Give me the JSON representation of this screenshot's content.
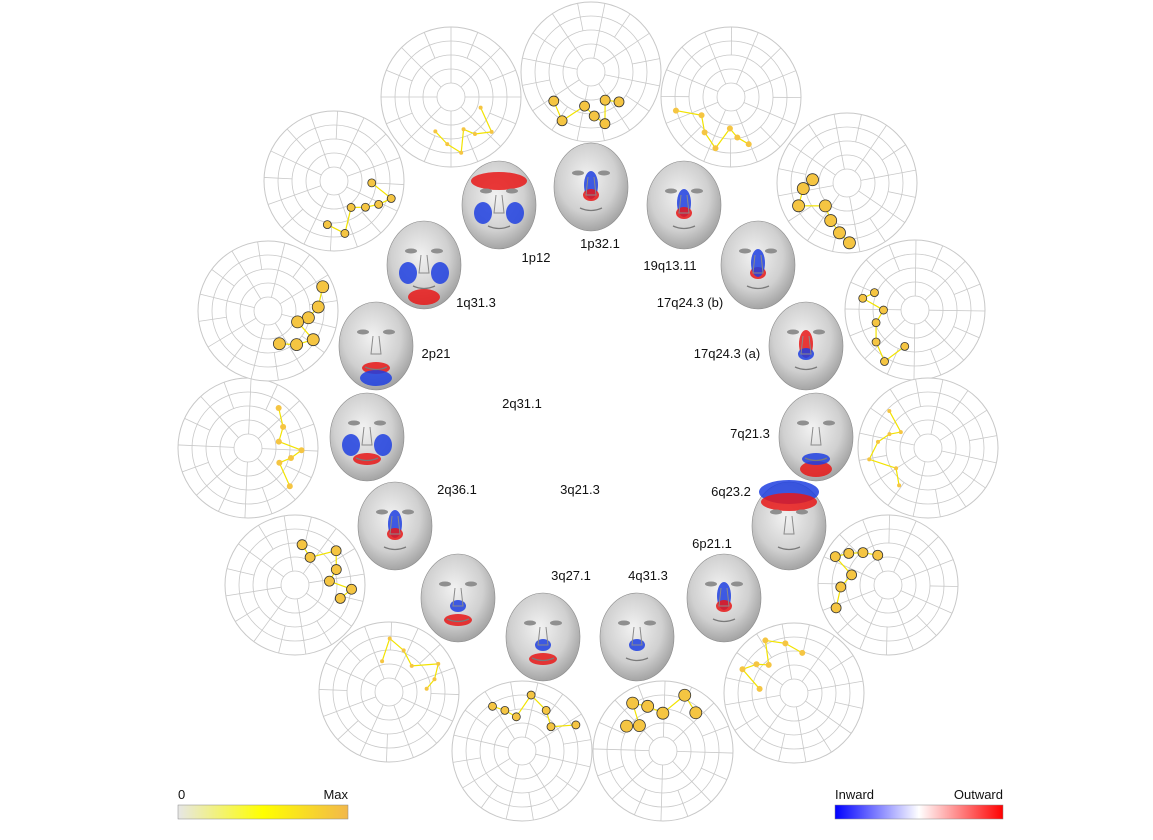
{
  "loci": [
    "1p12",
    "1p32.1",
    "19q13.11",
    "17q24.3 (b)",
    "17q24.3 (a)",
    "7q21.3",
    "6q23.2",
    "6p21.1",
    "4q31.3",
    "3q27.1",
    "3q21.3",
    "2q36.1",
    "2q31.1",
    "2p21",
    "1q31.3"
  ],
  "legend_magnitude": {
    "min_label": "0",
    "max_label": "Max",
    "colors": [
      "#e6e6e6",
      "#ffff00",
      "#f2b84b"
    ]
  },
  "legend_direction": {
    "inward_label": "Inward",
    "outward_label": "Outward",
    "colors": [
      "#0000ff",
      "#ffffff",
      "#ff0000"
    ]
  },
  "face_effect_colors": {
    "inward": "#1f3fe0",
    "outward": "#e81818",
    "skin": "#cfcfcf"
  },
  "node_color": "#f5c542",
  "web_line_color": "#c8c8c8"
}
